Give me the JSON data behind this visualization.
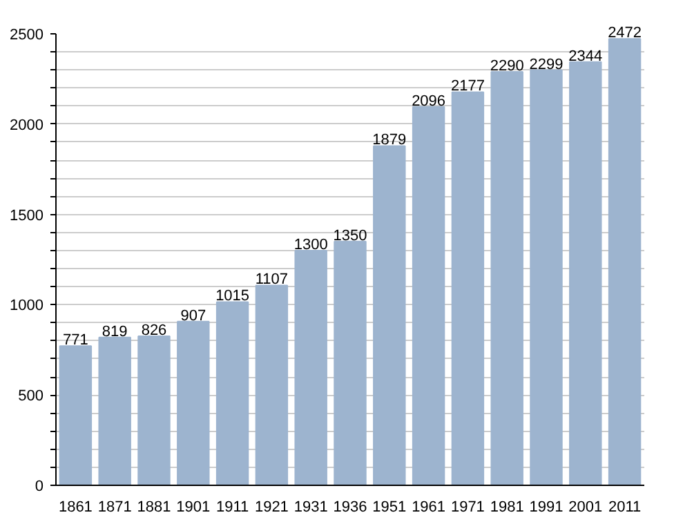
{
  "chart_data": {
    "type": "bar",
    "categories": [
      "1861",
      "1871",
      "1881",
      "1901",
      "1911",
      "1921",
      "1931",
      "1936",
      "1951",
      "1961",
      "1971",
      "1981",
      "1991",
      "2001",
      "2011"
    ],
    "values": [
      771,
      819,
      826,
      907,
      1015,
      1107,
      1300,
      1350,
      1879,
      2096,
      2177,
      2290,
      2299,
      2344,
      2472
    ],
    "color": "#9db4cf",
    "data_labels": true,
    "grid": "y",
    "ylim": [
      0,
      2500
    ],
    "yticks": [
      0,
      {
        "value": 100,
        "label": null
      },
      {
        "value": 200,
        "label": null
      },
      {
        "value": 300,
        "label": null
      },
      {
        "value": 400,
        "label": null
      },
      500,
      {
        "value": 600,
        "label": null
      },
      {
        "value": 700,
        "label": null
      },
      {
        "value": 800,
        "label": null
      },
      {
        "value": 900,
        "label": null
      },
      1000,
      {
        "value": 1100,
        "label": null
      },
      {
        "value": 1200,
        "label": null
      },
      {
        "value": 1300,
        "label": null
      },
      {
        "value": 1400,
        "label": null
      },
      1500,
      {
        "value": 1600,
        "label": null
      },
      {
        "value": 1700,
        "label": null
      },
      {
        "value": 1800,
        "label": null
      },
      {
        "value": 1900,
        "label": null
      },
      2000,
      {
        "value": 2100,
        "label": null
      },
      {
        "value": 2200,
        "label": null
      },
      {
        "value": 2300,
        "label": null
      },
      {
        "value": 2400,
        "label": null
      },
      2500
    ]
  }
}
